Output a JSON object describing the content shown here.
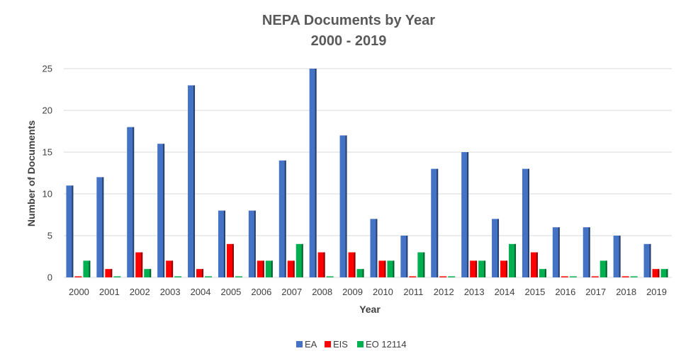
{
  "chart_data": {
    "type": "bar",
    "title": "NEPA Documents by Year",
    "subtitle": "2000 - 2019",
    "xlabel": "Year",
    "ylabel": "Number of Documents",
    "ylim": [
      0,
      25
    ],
    "yticks": [
      0,
      5,
      10,
      15,
      20,
      25
    ],
    "grid": true,
    "legend_position": "bottom",
    "categories": [
      "2000",
      "2001",
      "2002",
      "2003",
      "2004",
      "2005",
      "2006",
      "2007",
      "2008",
      "2009",
      "2010",
      "2011",
      "2012",
      "2013",
      "2014",
      "2015",
      "2016",
      "2017",
      "2018",
      "2019"
    ],
    "series": [
      {
        "name": "EA",
        "color": "#4472c4",
        "values": [
          11,
          12,
          18,
          16,
          23,
          8,
          8,
          14,
          25,
          17,
          7,
          5,
          13,
          15,
          7,
          13,
          6,
          6,
          5,
          4
        ]
      },
      {
        "name": "EIS",
        "color": "#ff0000",
        "values": [
          0,
          1,
          3,
          2,
          1,
          4,
          2,
          2,
          3,
          3,
          2,
          0,
          0,
          2,
          2,
          3,
          0,
          0,
          0,
          1
        ]
      },
      {
        "name": "EO 12114",
        "color": "#00b050",
        "values": [
          2,
          0,
          1,
          0,
          0,
          0,
          2,
          4,
          0,
          1,
          2,
          3,
          0,
          2,
          4,
          1,
          0,
          2,
          0,
          1
        ]
      }
    ]
  }
}
